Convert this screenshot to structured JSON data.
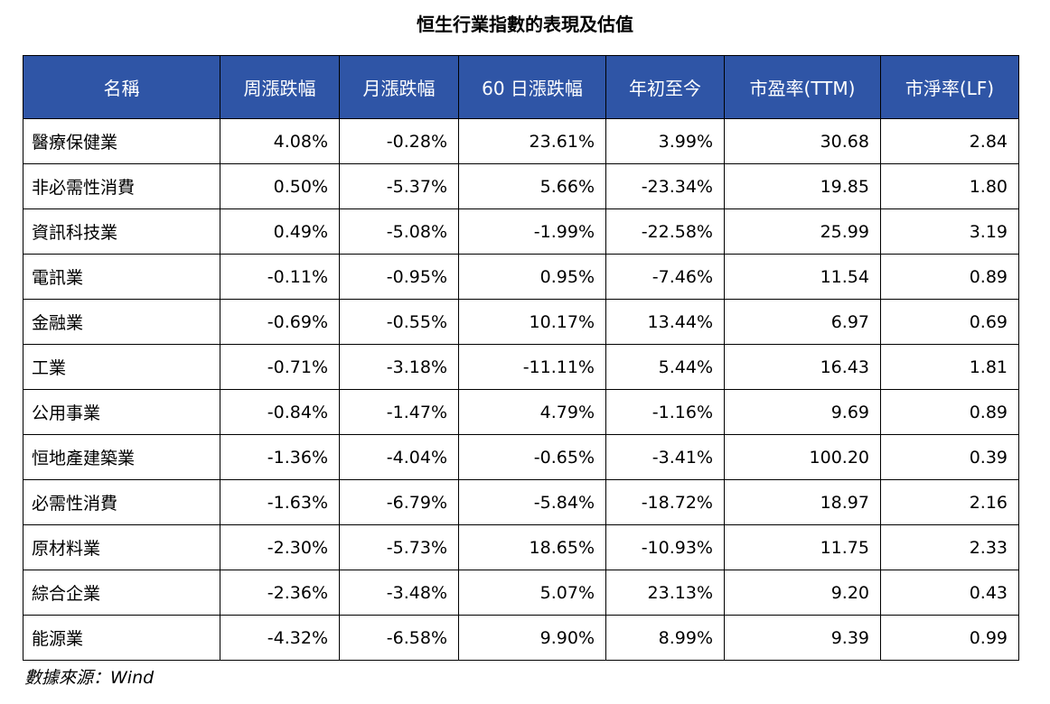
{
  "title": "恒生行業指數的表現及估值",
  "table": {
    "headers": [
      "名稱",
      "周漲跌幅",
      "月漲跌幅",
      "60 日漲跌幅",
      "年初至今",
      "市盈率(TTM)",
      "市淨率(LF)"
    ],
    "rows": [
      [
        "醫療保健業",
        "4.08%",
        "-0.28%",
        "23.61%",
        "3.99%",
        "30.68",
        "2.84"
      ],
      [
        "非必需性消費",
        "0.50%",
        "-5.37%",
        "5.66%",
        "-23.34%",
        "19.85",
        "1.80"
      ],
      [
        "資訊科技業",
        "0.49%",
        "-5.08%",
        "-1.99%",
        "-22.58%",
        "25.99",
        "3.19"
      ],
      [
        "電訊業",
        "-0.11%",
        "-0.95%",
        "0.95%",
        "-7.46%",
        "11.54",
        "0.89"
      ],
      [
        "金融業",
        "-0.69%",
        "-0.55%",
        "10.17%",
        "13.44%",
        "6.97",
        "0.69"
      ],
      [
        "工業",
        "-0.71%",
        "-3.18%",
        "-11.11%",
        "5.44%",
        "16.43",
        "1.81"
      ],
      [
        "公用事業",
        "-0.84%",
        "-1.47%",
        "4.79%",
        "-1.16%",
        "9.69",
        "0.89"
      ],
      [
        "恒地產建築業",
        "-1.36%",
        "-4.04%",
        "-0.65%",
        "-3.41%",
        "100.20",
        "0.39"
      ],
      [
        "必需性消費",
        "-1.63%",
        "-6.79%",
        "-5.84%",
        "-18.72%",
        "18.97",
        "2.16"
      ],
      [
        "原材料業",
        "-2.30%",
        "-5.73%",
        "18.65%",
        "-10.93%",
        "11.75",
        "2.33"
      ],
      [
        "綜合企業",
        "-2.36%",
        "-3.48%",
        "5.07%",
        "23.13%",
        "9.20",
        "0.43"
      ],
      [
        "能源業",
        "-4.32%",
        "-6.58%",
        "9.90%",
        "8.99%",
        "9.39",
        "0.99"
      ]
    ]
  },
  "source": "數據來源：Wind",
  "colors": {
    "header_background": "#2f55a6",
    "header_text": "#ffffff"
  }
}
